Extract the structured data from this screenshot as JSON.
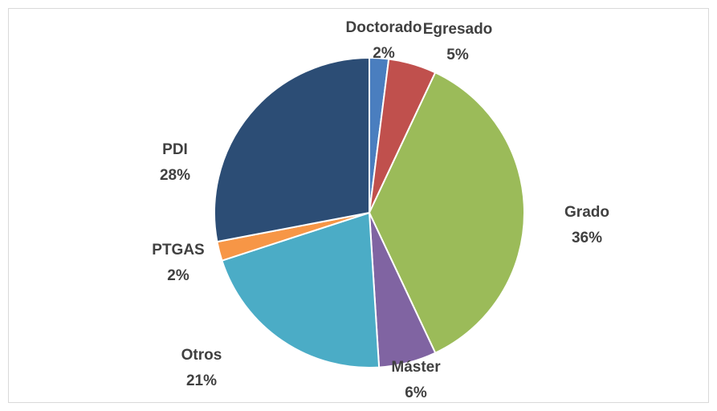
{
  "chart_data": {
    "type": "pie",
    "categories": [
      "Doctorado",
      "Egresado",
      "Grado",
      "Máster",
      "Otros",
      "PTGAS",
      "PDI"
    ],
    "values": [
      2,
      5,
      36,
      6,
      21,
      2,
      28
    ],
    "value_labels": [
      "2%",
      "5%",
      "36%",
      "6%",
      "21%",
      "2%",
      "28%"
    ],
    "colors": [
      "#4a7ebf",
      "#c0504d",
      "#9bbb59",
      "#8064a2",
      "#4bacc6",
      "#f79646",
      "#2c4d75"
    ]
  }
}
